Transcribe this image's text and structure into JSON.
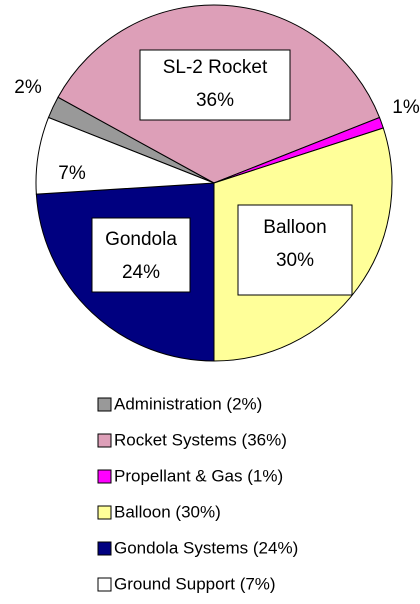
{
  "chart_data": {
    "type": "pie",
    "categories": [
      "Administration (2%)",
      "Rocket Systems (36%)",
      "Propellant & Gas (1%)",
      "Balloon (30%)",
      "Gondola Systems (24%)",
      "Ground Support (7%)"
    ],
    "values": [
      2,
      36,
      1,
      30,
      24,
      7
    ],
    "value_labels": [
      "2%",
      "36%",
      "1%",
      "30%",
      "24%",
      "7%"
    ],
    "labels": [
      null,
      "SL-2 Rocket",
      null,
      "Balloon",
      "Gondola",
      null
    ],
    "colors": [
      "#999999",
      "#dd9fb8",
      "#ff00ff",
      "#ffff99",
      "#000080",
      "#ffffff"
    ]
  }
}
